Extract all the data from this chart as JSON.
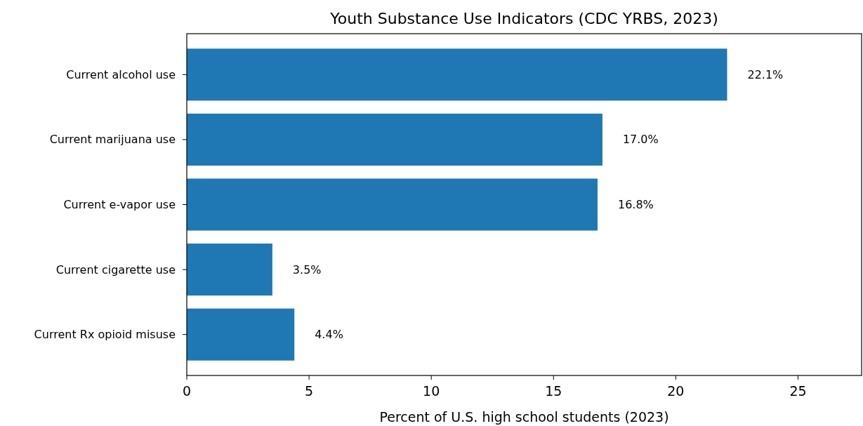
{
  "chart_data": {
    "type": "bar",
    "orientation": "horizontal",
    "title": "Youth Substance Use Indicators (CDC YRBS, 2023)",
    "xlabel": "Percent of U.S. high school students (2023)",
    "categories": [
      "Current alcohol use",
      "Current marijuana use",
      "Current e-vapor use",
      "Current cigarette use",
      "Current Rx opioid misuse"
    ],
    "values": [
      22.1,
      17.0,
      16.8,
      3.5,
      4.4
    ],
    "value_labels": [
      "22.1%",
      "17.0%",
      "16.8%",
      "3.5%",
      "4.4%"
    ],
    "color": "#1f77b4",
    "xlim": [
      0,
      27.6
    ],
    "xticks": [
      0,
      5,
      10,
      15,
      20,
      25
    ]
  }
}
